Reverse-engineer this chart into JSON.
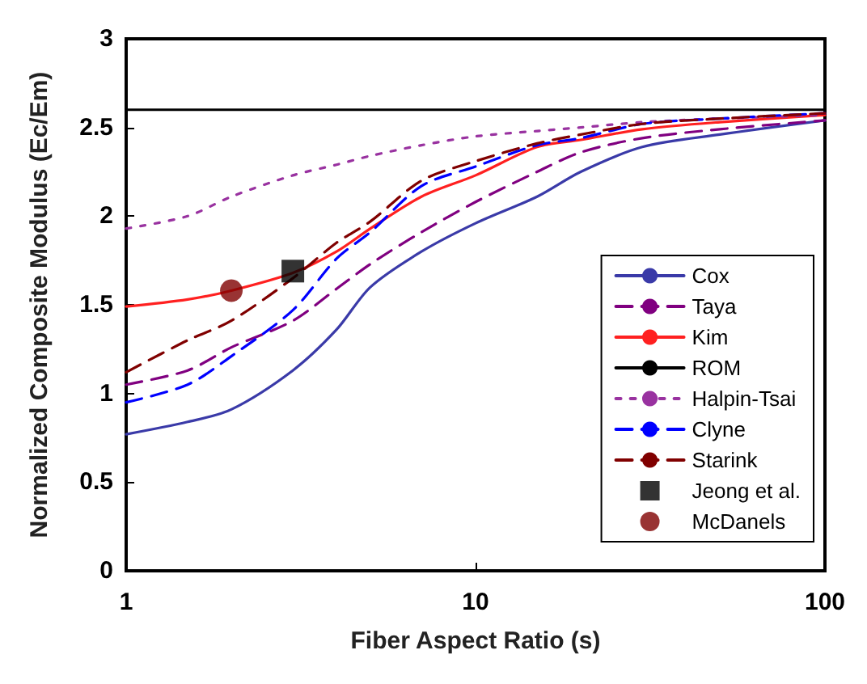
{
  "chart_data": {
    "type": "line",
    "xlabel": "Fiber Aspect Ratio (s)",
    "ylabel": "Normalized Composite Modulus (Ec/Em)",
    "log": "x",
    "xlim": [
      1,
      100
    ],
    "xticks": [
      1,
      10,
      100
    ],
    "ylim": [
      0,
      3
    ],
    "yticks": [
      0,
      0.5,
      1,
      1.5,
      2,
      2.5,
      3
    ],
    "grid": false,
    "legend": "bottom right",
    "marker": "none",
    "x": [
      1,
      1.5,
      2,
      3,
      4,
      5,
      7,
      10,
      15,
      20,
      30,
      50,
      100
    ],
    "series": [
      {
        "name": "Cox",
        "color": "#3a3aa8",
        "line_style": "solid",
        "values": [
          0.77,
          0.84,
          0.91,
          1.13,
          1.36,
          1.6,
          1.8,
          1.96,
          2.11,
          2.25,
          2.39,
          2.46,
          2.54
        ]
      },
      {
        "name": "Taya",
        "color": "#800080",
        "line_style": "dashed",
        "values": [
          1.05,
          1.13,
          1.26,
          1.41,
          1.59,
          1.73,
          1.91,
          2.08,
          2.25,
          2.36,
          2.44,
          2.49,
          2.54
        ]
      },
      {
        "name": "Kim",
        "color": "#ff2020",
        "line_style": "solid",
        "values": [
          1.49,
          1.53,
          1.58,
          1.68,
          1.8,
          1.93,
          2.11,
          2.23,
          2.39,
          2.43,
          2.49,
          2.53,
          2.57
        ]
      },
      {
        "name": "ROM",
        "color": "#000000",
        "line_style": "solid",
        "x": [
          1,
          100
        ],
        "values": [
          2.6,
          2.6
        ]
      },
      {
        "name": "Halpin-Tsai",
        "color": "#9932a0",
        "line_style": "dotted",
        "values": [
          1.93,
          2.0,
          2.11,
          2.23,
          2.29,
          2.34,
          2.4,
          2.45,
          2.48,
          2.5,
          2.53,
          2.55,
          2.57
        ]
      },
      {
        "name": "Clyne",
        "color": "#0000ff",
        "line_style": "dashed",
        "values": [
          0.95,
          1.05,
          1.21,
          1.47,
          1.76,
          1.91,
          2.17,
          2.28,
          2.4,
          2.44,
          2.52,
          2.55,
          2.58
        ]
      },
      {
        "name": "Starink",
        "color": "#800000",
        "line_style": "dashed",
        "values": [
          1.12,
          1.3,
          1.41,
          1.65,
          1.85,
          1.97,
          2.2,
          2.31,
          2.41,
          2.46,
          2.52,
          2.55,
          2.58
        ]
      },
      {
        "name": "Jeong et al.",
        "type": "scatter",
        "marker": "square",
        "color": "#000000",
        "x": [
          3
        ],
        "values": [
          1.69
        ]
      },
      {
        "name": "McDanels",
        "type": "scatter",
        "marker": "circle",
        "color": "#800000",
        "x": [
          2
        ],
        "values": [
          1.58
        ]
      }
    ]
  }
}
